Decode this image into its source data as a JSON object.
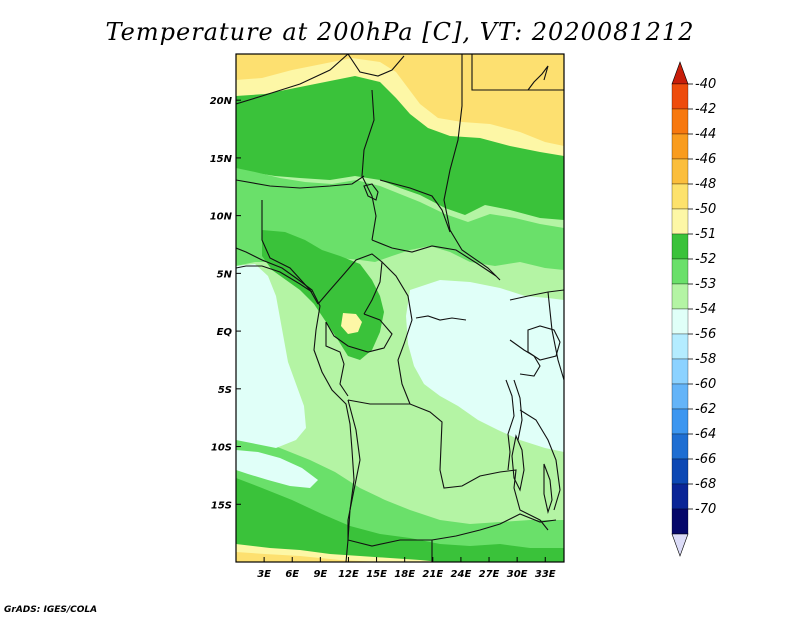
{
  "title": "Temperature at 200hPa [C], VT: 2020081212",
  "credit": "GrADS: IGES/COLA",
  "lat_ticks": [
    "20N",
    "15N",
    "10N",
    "5N",
    "EQ",
    "5S",
    "10S",
    "15S"
  ],
  "lat_values": [
    20,
    15,
    10,
    5,
    0,
    -5,
    -10,
    -15
  ],
  "lon_ticks": [
    "3E",
    "6E",
    "9E",
    "12E",
    "15E",
    "18E",
    "21E",
    "24E",
    "27E",
    "30E",
    "33E"
  ],
  "lon_values": [
    3,
    6,
    9,
    12,
    15,
    18,
    21,
    24,
    27,
    30,
    33
  ],
  "domain": {
    "lon_min": 0,
    "lon_max": 35,
    "lat_min": -20,
    "lat_max": 24
  },
  "colorbar": {
    "labels": [
      "-40",
      "-42",
      "-44",
      "-46",
      "-48",
      "-50",
      "-51",
      "-52",
      "-53",
      "-54",
      "-56",
      "-58",
      "-60",
      "-62",
      "-64",
      "-66",
      "-68",
      "-70"
    ],
    "colors": [
      "#c81e0a",
      "#ee4c0c",
      "#f7780e",
      "#f99c1e",
      "#fbbe3c",
      "#fde26c",
      "#fdf7a6",
      "#3ac23a",
      "#6ae06a",
      "#b4f4a4",
      "#e0fff8",
      "#b4ecff",
      "#8cd2ff",
      "#64b4f8",
      "#3c96f0",
      "#1e6ed2",
      "#0c48b4",
      "#0a2596",
      "#06086a",
      "#dcdcf8"
    ]
  },
  "legend_colors": {
    "warm_yellow": "#fde070",
    "pale_yellow": "#fdf7a6",
    "green_dark": "#3ac23a",
    "green_mid": "#6ae06a",
    "green_light": "#b4f4a4",
    "cyan_pale": "#e0fff8"
  }
}
